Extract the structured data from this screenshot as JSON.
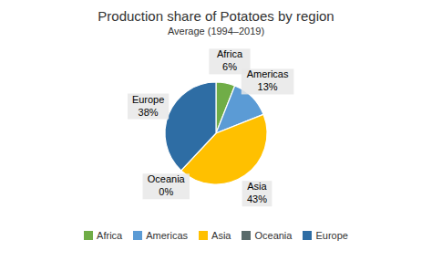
{
  "chart_data": {
    "type": "pie",
    "title": "Production share of Potatoes by region",
    "subtitle": "Average (1994–2019)",
    "categories": [
      "Africa",
      "Americas",
      "Asia",
      "Oceania",
      "Europe"
    ],
    "values": [
      6,
      13,
      43,
      0,
      38
    ],
    "value_labels": [
      "6%",
      "13%",
      "43%",
      "0%",
      "38%"
    ],
    "colors": [
      "#70ad47",
      "#5b9bd5",
      "#ffc000",
      "#596b6b",
      "#2e6da4"
    ],
    "data_labels": true,
    "legend": "bottom"
  }
}
